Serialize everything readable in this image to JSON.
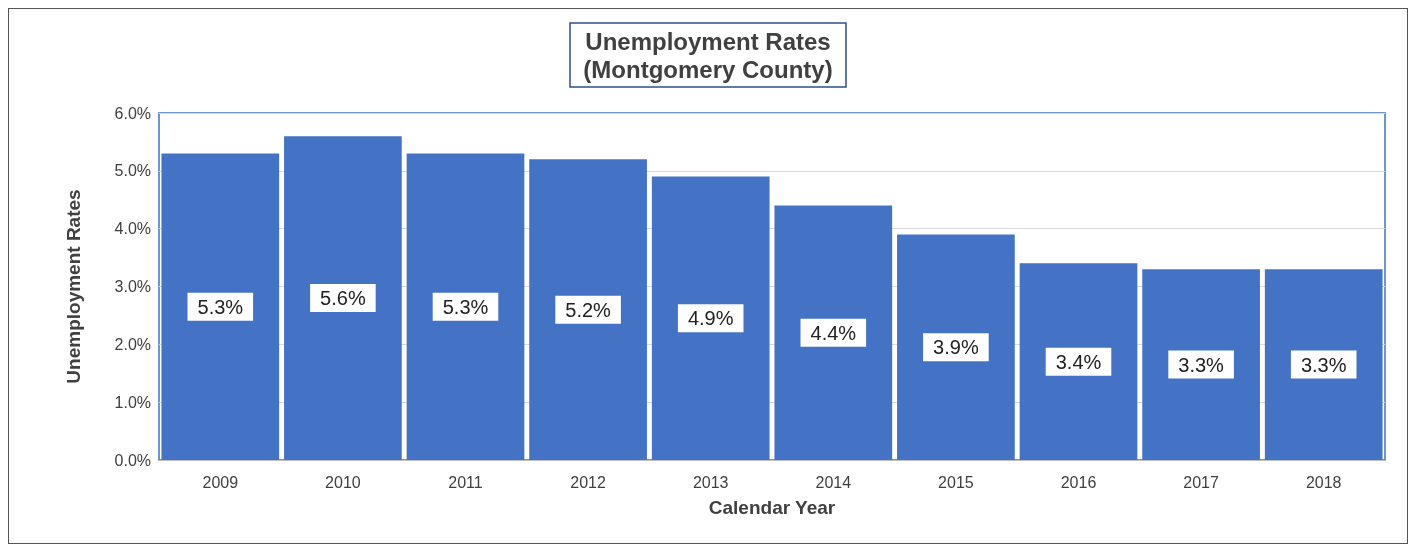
{
  "chart_data": {
    "type": "bar",
    "title": "Unemployment Rates\n(Montgomery County)",
    "xlabel": "Calendar Year",
    "ylabel": "Unemployment Rates",
    "categories": [
      "2009",
      "2010",
      "2011",
      "2012",
      "2013",
      "2014",
      "2015",
      "2016",
      "2017",
      "2018"
    ],
    "values": [
      5.3,
      5.6,
      5.3,
      5.2,
      4.9,
      4.4,
      3.9,
      3.4,
      3.3,
      3.3
    ],
    "value_labels": [
      "5.3%",
      "5.6%",
      "5.3%",
      "5.2%",
      "4.9%",
      "4.4%",
      "3.9%",
      "3.4%",
      "3.3%",
      "3.3%"
    ],
    "color": "#4472c4",
    "ylim": [
      0,
      6
    ],
    "yticks": [
      {
        "value": 0,
        "label": "0.0%"
      },
      {
        "value": 1,
        "label": "1.0%"
      },
      {
        "value": 2,
        "label": "2.0%"
      },
      {
        "value": 3,
        "label": "3.0%"
      },
      {
        "value": 4,
        "label": "4.0%"
      },
      {
        "value": 5,
        "label": "5.0%"
      },
      {
        "value": 6,
        "label": "6.0%"
      }
    ],
    "grid": "y"
  }
}
